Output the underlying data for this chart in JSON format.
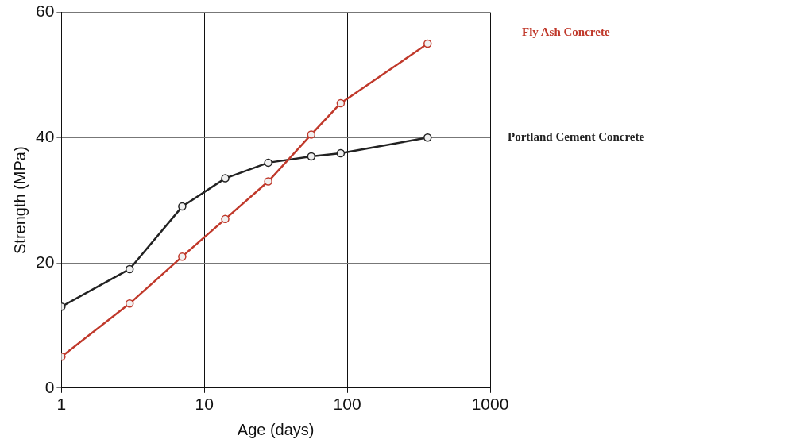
{
  "chart_data": {
    "type": "line",
    "xlabel": "Age (days)",
    "ylabel": "Strength (MPa)",
    "log": "x",
    "xlim": [
      1,
      1000
    ],
    "xticks": [
      1,
      10,
      100,
      1000
    ],
    "ylim": [
      0,
      60
    ],
    "yticks": [
      0,
      20,
      40,
      60
    ],
    "grid": true,
    "legend": false,
    "marker": "circle",
    "line_style": "solid",
    "series": [
      {
        "name": "Fly Ash Concrete",
        "color": "#c0392b",
        "x": [
          1,
          3,
          7,
          14,
          28,
          56,
          90,
          365
        ],
        "values": [
          5,
          13.5,
          21,
          27,
          33,
          40.5,
          45.5,
          55
        ]
      },
      {
        "name": "Portland Cement Concrete",
        "color": "#222222",
        "x": [
          1,
          3,
          7,
          14,
          28,
          56,
          90,
          365
        ],
        "values": [
          13,
          19,
          29,
          33.5,
          36,
          37,
          37.5,
          40
        ]
      }
    ]
  }
}
